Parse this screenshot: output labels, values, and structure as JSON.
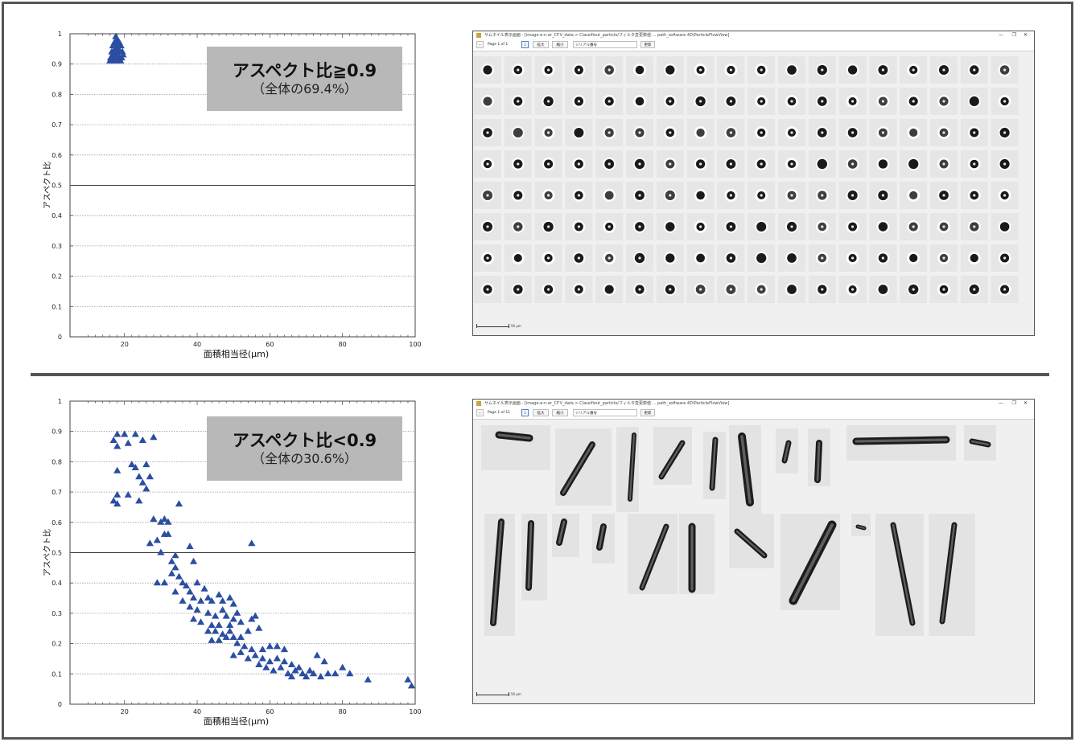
{
  "panels": {
    "top": {
      "callout": {
        "title": "アスペクト比≧0.9",
        "subtitle": "（全体の69.4%）"
      },
      "window": {
        "title": "サムネイル表示画面 - [image-e-n.er_CF.V_data > Classifiout_particle/フィルタ変更数値 ... path_software 4D\\ParticleFlowView]",
        "page_label": "Page 1 of 1",
        "zoom_in": "拡大",
        "zoom_out": "縮小",
        "sort_select": "シリアル番号",
        "apply_button": "更新",
        "scale_text": "50 µm",
        "win_min": "—",
        "win_max": "❐",
        "win_close": "✕"
      }
    },
    "bottom": {
      "callout": {
        "title": "アスペクト比<0.9",
        "subtitle": "（全体の30.6%）"
      },
      "window": {
        "title": "サムネイル表示画面 - [image-e-n.er_CF.V_data > Classifiout_particle/フィルタ変更数値 ... path_software 4D\\ParticleFlowView]",
        "page_label": "Page 1 of 11",
        "zoom_in": "拡大",
        "zoom_out": "縮小",
        "sort_select": "シリアル番号",
        "apply_button": "更新",
        "scale_text": "50 µm",
        "win_min": "—",
        "win_max": "❐",
        "win_close": "✕"
      }
    }
  },
  "colors": {
    "marker": "#2b4ea2",
    "frame": "#555555",
    "callout_bg": "#b8b8b8"
  },
  "chart_data": [
    {
      "type": "scatter",
      "title": "",
      "xlabel": "面積相当径(μm)",
      "ylabel": "アスペクト比",
      "xlim": [
        5,
        100
      ],
      "ylim": [
        0,
        1
      ],
      "xticks": [
        "20",
        "40",
        "60",
        "80",
        "100"
      ],
      "yticks": [
        "0",
        "0.1",
        "0.2",
        "0.3",
        "0.4",
        "0.5",
        "0.6",
        "0.7",
        "0.8",
        "0.9",
        "1"
      ],
      "marker": "triangle",
      "grid": true,
      "points": [
        [
          17.6,
          0.99
        ],
        [
          18.0,
          0.98
        ],
        [
          17.2,
          0.97
        ],
        [
          18.6,
          0.97
        ],
        [
          16.8,
          0.96
        ],
        [
          17.9,
          0.96
        ],
        [
          19.0,
          0.96
        ],
        [
          17.4,
          0.95
        ],
        [
          18.3,
          0.95
        ],
        [
          16.5,
          0.94
        ],
        [
          17.0,
          0.94
        ],
        [
          18.8,
          0.94
        ],
        [
          19.4,
          0.94
        ],
        [
          17.7,
          0.93
        ],
        [
          16.9,
          0.93
        ],
        [
          18.1,
          0.93
        ],
        [
          16.2,
          0.92
        ],
        [
          17.3,
          0.92
        ],
        [
          18.5,
          0.92
        ],
        [
          19.2,
          0.92
        ],
        [
          16.6,
          0.91
        ],
        [
          17.8,
          0.91
        ],
        [
          18.9,
          0.91
        ],
        [
          16.0,
          0.91
        ],
        [
          17.5,
          0.95
        ],
        [
          18.4,
          0.96
        ],
        [
          17.1,
          0.93
        ],
        [
          19.6,
          0.93
        ],
        [
          16.4,
          0.92
        ],
        [
          18.2,
          0.97
        ],
        [
          17.9,
          0.94
        ],
        [
          18.7,
          0.92
        ]
      ]
    },
    {
      "type": "scatter",
      "title": "",
      "xlabel": "面積相当径(μm)",
      "ylabel": "アスペクト比",
      "xlim": [
        5,
        100
      ],
      "ylim": [
        0,
        1
      ],
      "xticks": [
        "20",
        "40",
        "60",
        "80",
        "100"
      ],
      "yticks": [
        "0",
        "0.1",
        "0.2",
        "0.3",
        "0.4",
        "0.5",
        "0.6",
        "0.7",
        "0.8",
        "0.9",
        "1"
      ],
      "marker": "triangle",
      "grid": true,
      "points": [
        [
          17,
          0.87
        ],
        [
          18,
          0.89
        ],
        [
          20,
          0.89
        ],
        [
          23,
          0.89
        ],
        [
          21,
          0.86
        ],
        [
          28,
          0.88
        ],
        [
          18,
          0.85
        ],
        [
          25,
          0.87
        ],
        [
          22,
          0.79
        ],
        [
          23,
          0.78
        ],
        [
          26,
          0.79
        ],
        [
          18,
          0.77
        ],
        [
          24,
          0.75
        ],
        [
          27,
          0.75
        ],
        [
          25,
          0.73
        ],
        [
          26,
          0.71
        ],
        [
          17,
          0.67
        ],
        [
          18,
          0.66
        ],
        [
          18,
          0.69
        ],
        [
          21,
          0.69
        ],
        [
          24,
          0.67
        ],
        [
          35,
          0.66
        ],
        [
          28,
          0.61
        ],
        [
          30,
          0.6
        ],
        [
          31,
          0.61
        ],
        [
          32,
          0.6
        ],
        [
          31,
          0.56
        ],
        [
          32,
          0.56
        ],
        [
          29,
          0.54
        ],
        [
          27,
          0.53
        ],
        [
          30,
          0.5
        ],
        [
          34,
          0.49
        ],
        [
          38,
          0.52
        ],
        [
          39,
          0.47
        ],
        [
          33,
          0.47
        ],
        [
          34,
          0.45
        ],
        [
          33,
          0.43
        ],
        [
          55,
          0.53
        ],
        [
          29,
          0.4
        ],
        [
          31,
          0.4
        ],
        [
          35,
          0.42
        ],
        [
          36,
          0.4
        ],
        [
          37,
          0.39
        ],
        [
          40,
          0.4
        ],
        [
          38,
          0.37
        ],
        [
          39,
          0.35
        ],
        [
          42,
          0.38
        ],
        [
          34,
          0.37
        ],
        [
          36,
          0.34
        ],
        [
          41,
          0.34
        ],
        [
          43,
          0.35
        ],
        [
          44,
          0.34
        ],
        [
          46,
          0.36
        ],
        [
          47,
          0.34
        ],
        [
          49,
          0.35
        ],
        [
          50,
          0.33
        ],
        [
          38,
          0.32
        ],
        [
          40,
          0.31
        ],
        [
          43,
          0.3
        ],
        [
          45,
          0.29
        ],
        [
          47,
          0.31
        ],
        [
          48,
          0.29
        ],
        [
          50,
          0.28
        ],
        [
          51,
          0.3
        ],
        [
          39,
          0.28
        ],
        [
          41,
          0.27
        ],
        [
          44,
          0.26
        ],
        [
          46,
          0.26
        ],
        [
          49,
          0.26
        ],
        [
          52,
          0.27
        ],
        [
          55,
          0.28
        ],
        [
          56,
          0.29
        ],
        [
          43,
          0.24
        ],
        [
          45,
          0.24
        ],
        [
          47,
          0.23
        ],
        [
          49,
          0.24
        ],
        [
          50,
          0.22
        ],
        [
          52,
          0.22
        ],
        [
          54,
          0.24
        ],
        [
          57,
          0.25
        ],
        [
          44,
          0.21
        ],
        [
          46,
          0.21
        ],
        [
          48,
          0.22
        ],
        [
          51,
          0.2
        ],
        [
          53,
          0.19
        ],
        [
          55,
          0.18
        ],
        [
          58,
          0.18
        ],
        [
          60,
          0.19
        ],
        [
          62,
          0.19
        ],
        [
          64,
          0.18
        ],
        [
          50,
          0.16
        ],
        [
          52,
          0.17
        ],
        [
          54,
          0.15
        ],
        [
          56,
          0.16
        ],
        [
          58,
          0.15
        ],
        [
          60,
          0.14
        ],
        [
          62,
          0.15
        ],
        [
          64,
          0.14
        ],
        [
          66,
          0.13
        ],
        [
          68,
          0.12
        ],
        [
          57,
          0.13
        ],
        [
          59,
          0.12
        ],
        [
          61,
          0.11
        ],
        [
          63,
          0.12
        ],
        [
          65,
          0.1
        ],
        [
          67,
          0.11
        ],
        [
          69,
          0.1
        ],
        [
          71,
          0.11
        ],
        [
          73,
          0.16
        ],
        [
          75,
          0.14
        ],
        [
          72,
          0.1
        ],
        [
          74,
          0.09
        ],
        [
          76,
          0.1
        ],
        [
          78,
          0.1
        ],
        [
          80,
          0.12
        ],
        [
          82,
          0.1
        ],
        [
          66,
          0.09
        ],
        [
          70,
          0.09
        ],
        [
          87,
          0.08
        ],
        [
          98,
          0.08
        ],
        [
          99,
          0.06
        ]
      ]
    }
  ]
}
